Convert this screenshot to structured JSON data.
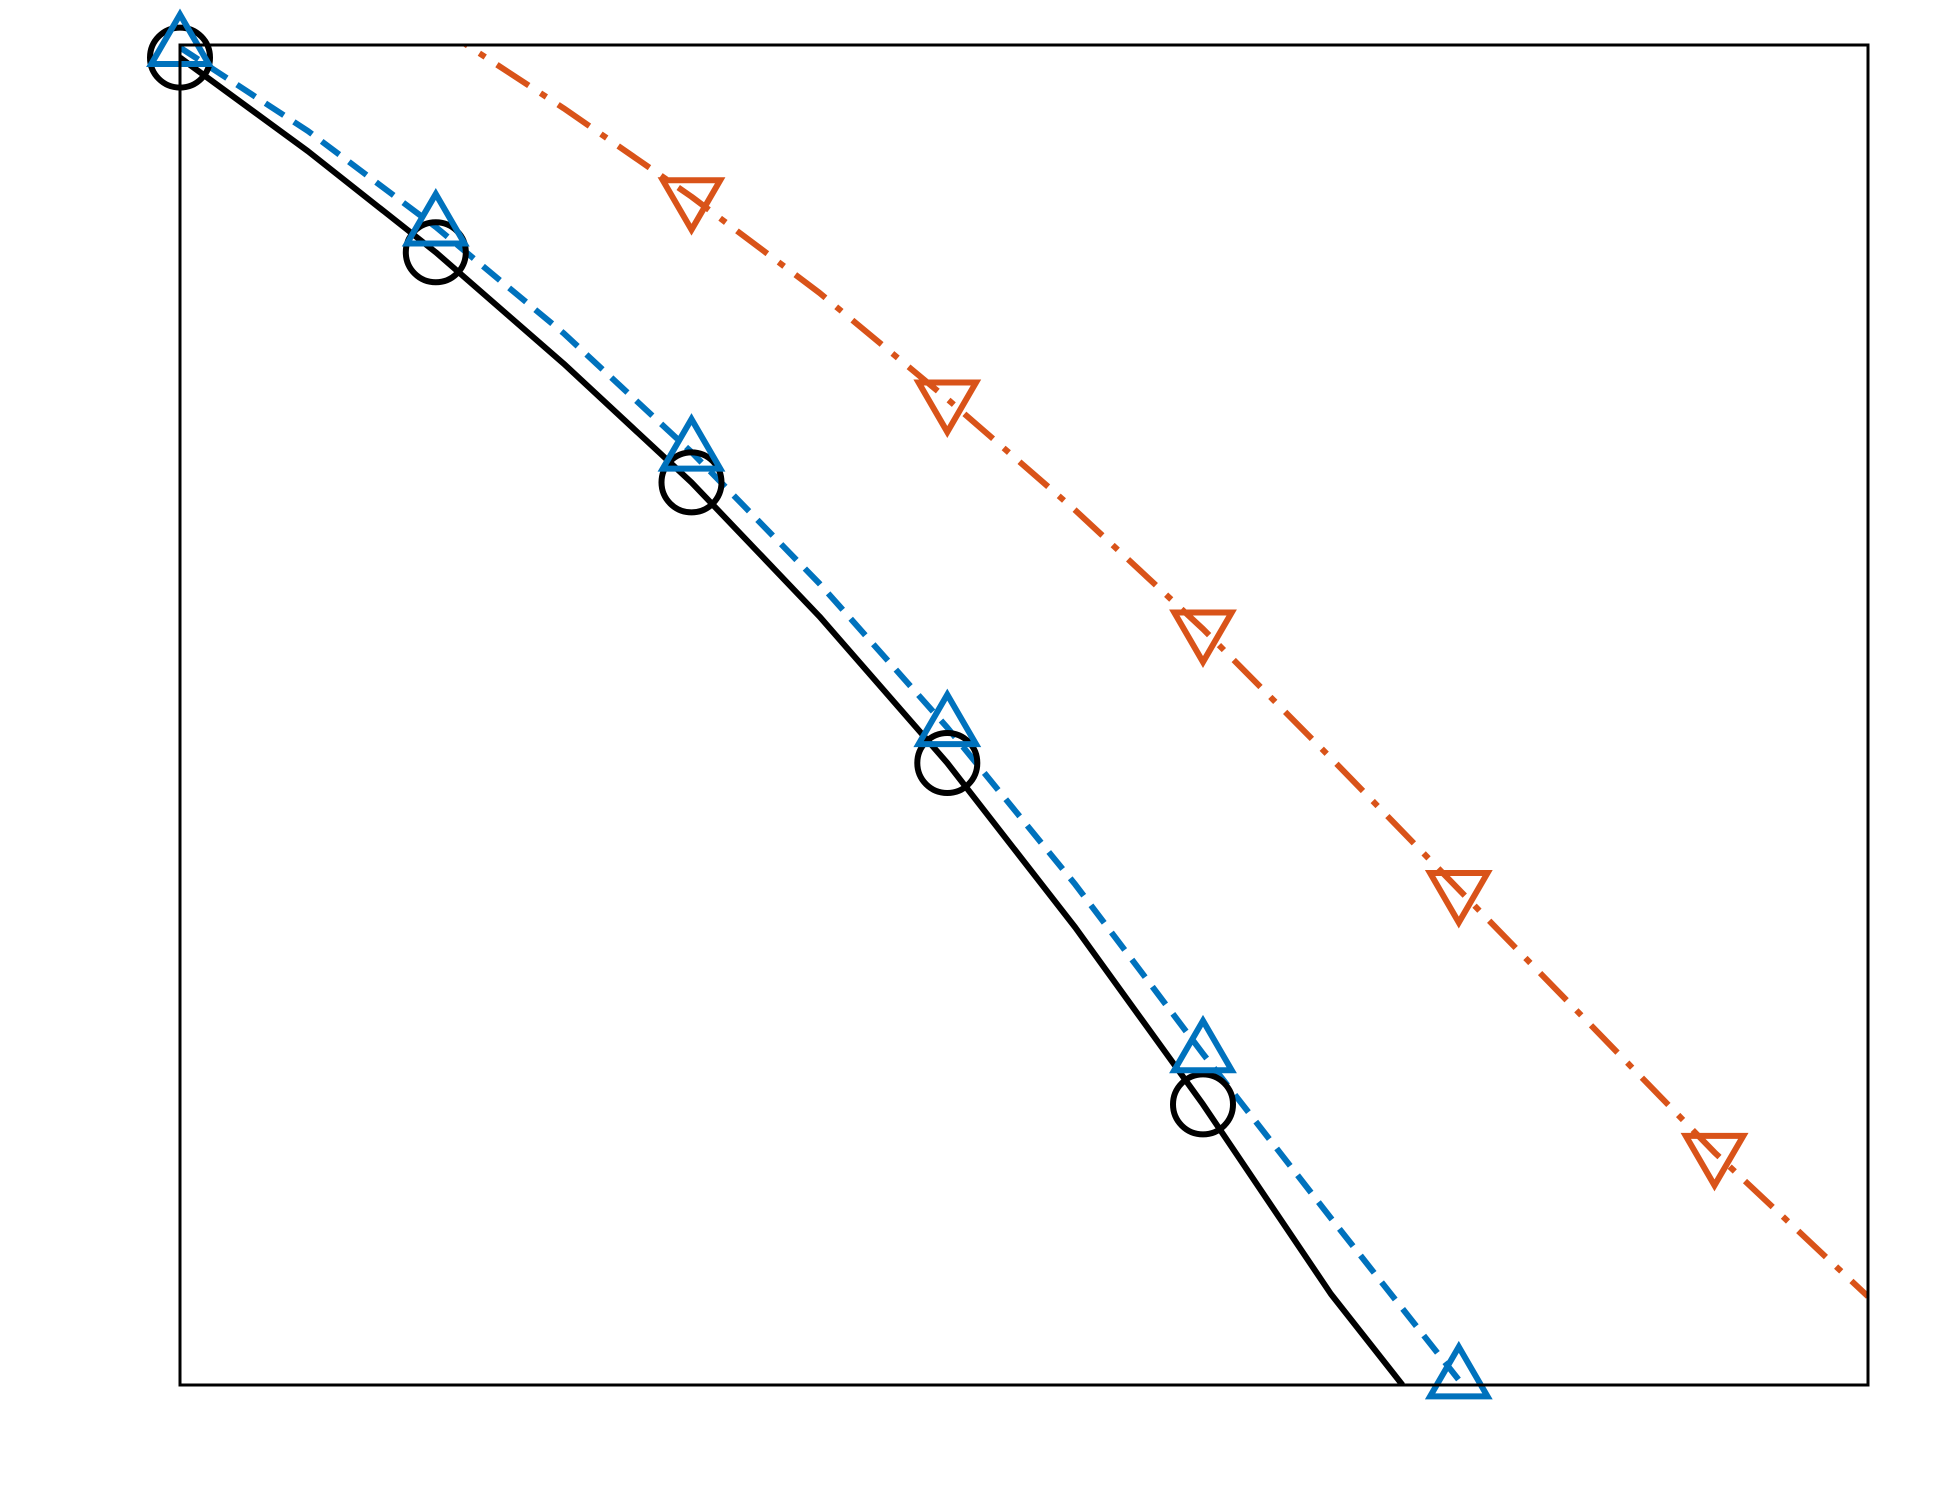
{
  "chart_data": {
    "type": "line",
    "title": "",
    "xlabel": "",
    "ylabel": "",
    "xlim": [
      0,
      6.6
    ],
    "ylim": [
      0,
      5.3
    ],
    "grid": false,
    "legend": "none",
    "axis_color": "#000000",
    "series": [
      {
        "color": "#000000",
        "line_style": "solid",
        "marker": "circle",
        "marker_x": [
          0,
          1,
          2,
          3,
          4
        ],
        "marker_y": [
          5.25,
          4.48,
          3.57,
          2.46,
          1.11
        ],
        "line_x": [
          0,
          0.5,
          1,
          1.5,
          2,
          2.5,
          3,
          3.5,
          4,
          4.5,
          4.78
        ],
        "line_y": [
          5.25,
          4.88,
          4.48,
          4.04,
          3.57,
          3.04,
          2.46,
          1.81,
          1.11,
          0.36,
          0.0
        ]
      },
      {
        "color": "#0072BD",
        "line_style": "dashed",
        "marker": "triangle-up",
        "marker_x": [
          0,
          1,
          2,
          3,
          4,
          5
        ],
        "marker_y": [
          5.29,
          4.58,
          3.69,
          2.6,
          1.31,
          0.02
        ],
        "line_x": [
          0,
          0.5,
          1,
          1.5,
          2,
          2.5,
          3,
          3.5,
          4,
          4.5,
          5
        ],
        "line_y": [
          5.29,
          4.96,
          4.58,
          4.16,
          3.69,
          3.17,
          2.6,
          1.98,
          1.31,
          0.66,
          0.02
        ]
      },
      {
        "color": "#D95319",
        "line_style": "dashdot",
        "marker": "triangle-down",
        "marker_x": [
          2,
          3,
          4,
          5,
          6
        ],
        "marker_y": [
          4.7,
          3.9,
          2.99,
          1.96,
          0.92
        ],
        "line_x": [
          1,
          1.5,
          2,
          2.5,
          3,
          3.5,
          4,
          4.5,
          5,
          5.5,
          6,
          6.6
        ],
        "line_y": [
          5.38,
          5.05,
          4.7,
          4.32,
          3.9,
          3.46,
          2.99,
          2.48,
          1.96,
          1.44,
          0.92,
          0.35
        ]
      }
    ]
  }
}
